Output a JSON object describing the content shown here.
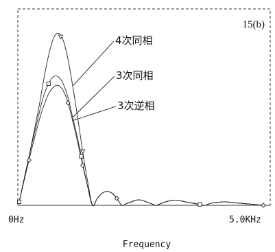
{
  "chart_data": {
    "type": "line",
    "panel_label": "15(b)",
    "xlabel": "Frequency",
    "ylabel": "",
    "x_tick_labels": [
      "0Hz",
      "5.0KHz"
    ],
    "xlim": [
      0,
      5.0
    ],
    "ylim": [
      0,
      1.0
    ],
    "grid": false,
    "series": [
      {
        "name": "4次同相",
        "marker": "triangle-down",
        "x": [
          0.0,
          0.2,
          0.4,
          0.5,
          0.6,
          0.7,
          0.8,
          0.9,
          1.0,
          1.1,
          1.2,
          1.3,
          1.4,
          1.5,
          1.6,
          1.7,
          1.8,
          1.9,
          2.0,
          2.1,
          2.2,
          2.3,
          2.4,
          2.5,
          2.6,
          2.7,
          2.8,
          2.9,
          3.0,
          3.2,
          3.4,
          3.6,
          3.8,
          3.9,
          4.0,
          4.2,
          4.4,
          4.6,
          4.8,
          5.0
        ],
        "values": [
          0.02,
          0.28,
          0.56,
          0.72,
          0.86,
          0.96,
          0.99,
          0.95,
          0.84,
          0.68,
          0.5,
          0.31,
          0.14,
          0.0,
          0.04,
          0.07,
          0.08,
          0.07,
          0.04,
          0.0,
          0.01,
          0.02,
          0.03,
          0.03,
          0.02,
          0.01,
          0.0,
          0.01,
          0.02,
          0.03,
          0.02,
          0.01,
          0.0,
          0.01,
          0.015,
          0.02,
          0.015,
          0.01,
          0.005,
          0.0
        ],
        "marker_x": [
          0.85,
          1.3
        ]
      },
      {
        "name": "3次同相",
        "marker": "square",
        "x": [
          0.0,
          0.2,
          0.4,
          0.5,
          0.6,
          0.7,
          0.8,
          0.9,
          1.0,
          1.1,
          1.2,
          1.3,
          1.4,
          1.5,
          1.6,
          1.7,
          1.8,
          1.9,
          2.0,
          2.1,
          2.2,
          2.3,
          2.4,
          2.5,
          2.6,
          2.7,
          2.8,
          2.9,
          3.0,
          3.2,
          3.4,
          3.6,
          3.8,
          3.9,
          4.0,
          4.2,
          4.4,
          4.6,
          4.8,
          5.0
        ],
        "values": [
          0.02,
          0.28,
          0.52,
          0.63,
          0.7,
          0.74,
          0.74,
          0.7,
          0.62,
          0.5,
          0.38,
          0.24,
          0.11,
          0.0,
          0.04,
          0.07,
          0.08,
          0.07,
          0.04,
          0.0,
          0.01,
          0.02,
          0.03,
          0.03,
          0.02,
          0.01,
          0.0,
          0.01,
          0.02,
          0.03,
          0.02,
          0.01,
          0.0,
          0.01,
          0.015,
          0.02,
          0.015,
          0.01,
          0.005,
          0.0
        ],
        "marker_x": [
          0.0,
          0.6,
          1.27,
          3.7
        ]
      },
      {
        "name": "3次逆相",
        "marker": "diamond",
        "x": [
          0.0,
          0.2,
          0.4,
          0.5,
          0.6,
          0.7,
          0.8,
          0.9,
          1.0,
          1.1,
          1.2,
          1.3,
          1.4,
          1.5,
          1.6,
          1.7,
          1.8,
          1.9,
          2.0,
          2.1,
          2.2,
          2.3,
          2.4,
          2.5,
          2.6,
          2.7,
          2.8,
          2.9,
          3.0,
          3.2,
          3.4,
          3.6,
          3.8,
          3.9,
          4.0,
          4.2,
          4.4,
          4.6,
          4.8,
          5.0
        ],
        "values": [
          0.02,
          0.26,
          0.48,
          0.57,
          0.64,
          0.68,
          0.69,
          0.66,
          0.59,
          0.48,
          0.36,
          0.23,
          0.11,
          0.0,
          0.04,
          0.07,
          0.08,
          0.07,
          0.04,
          0.0,
          0.01,
          0.02,
          0.03,
          0.03,
          0.02,
          0.01,
          0.0,
          0.01,
          0.02,
          0.03,
          0.02,
          0.01,
          0.0,
          0.01,
          0.015,
          0.02,
          0.015,
          0.01,
          0.005,
          0.0
        ],
        "marker_x": [
          0.2,
          1.0,
          1.3,
          2.0,
          5.0
        ]
      }
    ]
  }
}
